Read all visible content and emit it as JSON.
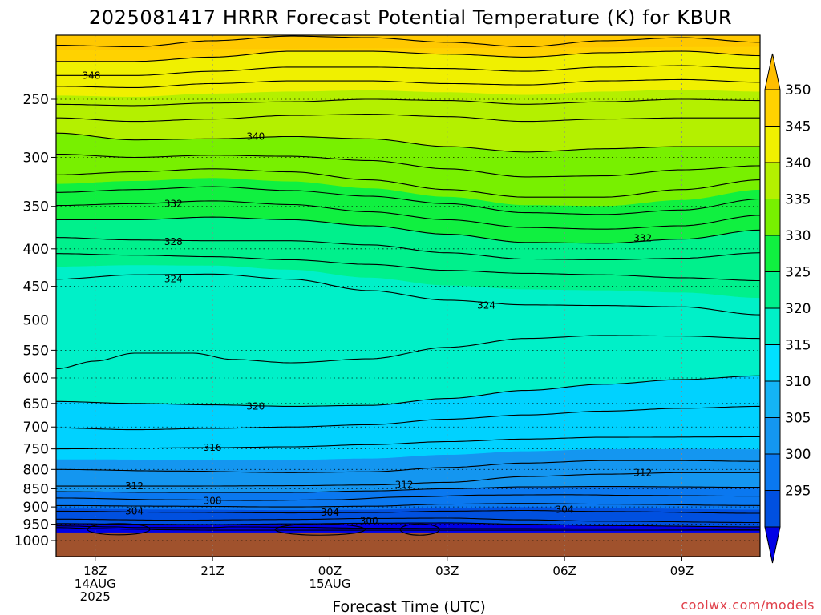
{
  "chart_data": {
    "type": "heatmap",
    "title": "2025081417 HRRR Forecast Potential Temperature (K) for KBUR",
    "xlabel": "Forecast Time (UTC)",
    "ylabel": "",
    "watermark": "coolwx.com/models",
    "x_ticks": [
      {
        "label": "18Z",
        "date": "14AUG",
        "year": "2025"
      },
      {
        "label": "21Z",
        "date": "",
        "year": ""
      },
      {
        "label": "00Z",
        "date": "15AUG",
        "year": ""
      },
      {
        "label": "03Z",
        "date": "",
        "year": ""
      },
      {
        "label": "06Z",
        "date": "",
        "year": ""
      },
      {
        "label": "09Z",
        "date": "",
        "year": ""
      }
    ],
    "y_axis": {
      "scale": "log-pressure",
      "units": "hPa",
      "range": [
        1000,
        200
      ],
      "ticks": [
        250,
        300,
        350,
        400,
        450,
        500,
        550,
        600,
        650,
        700,
        750,
        800,
        850,
        900,
        950,
        1000
      ]
    },
    "x_range_hours": [
      -1,
      17
    ],
    "surface_pressure_hpa": 975,
    "colorbar": {
      "levels": [
        295,
        300,
        305,
        310,
        315,
        320,
        325,
        330,
        335,
        340,
        345,
        350
      ],
      "colors": [
        "#0000e6",
        "#0050e0",
        "#0a78f0",
        "#1496f0",
        "#14b4f5",
        "#00e1ff",
        "#00f0c8",
        "#00f08c",
        "#10f040",
        "#78f000",
        "#b4f000",
        "#f0f000",
        "#ffd200",
        "#ffbe00"
      ]
    },
    "ground_color": "#a0522d",
    "contour_labels": [
      {
        "value": "348",
        "hour": -0.1,
        "p": 232
      },
      {
        "value": "340",
        "hour": 4.1,
        "p": 281
      },
      {
        "value": "332",
        "hour": 2.0,
        "p": 347
      },
      {
        "value": "328",
        "hour": 2.0,
        "p": 391
      },
      {
        "value": "324",
        "hour": 2.0,
        "p": 440
      },
      {
        "value": "324",
        "hour": 10.0,
        "p": 478
      },
      {
        "value": "332",
        "hour": 14.0,
        "p": 387
      },
      {
        "value": "320",
        "hour": 4.1,
        "p": 656
      },
      {
        "value": "316",
        "hour": 3.0,
        "p": 747
      },
      {
        "value": "312",
        "hour": 1.0,
        "p": 843
      },
      {
        "value": "312",
        "hour": 7.9,
        "p": 840
      },
      {
        "value": "312",
        "hour": 14.0,
        "p": 808
      },
      {
        "value": "308",
        "hour": 3.0,
        "p": 883
      },
      {
        "value": "304",
        "hour": 1.0,
        "p": 912
      },
      {
        "value": "304",
        "hour": 6.0,
        "p": 916
      },
      {
        "value": "304",
        "hour": 12.0,
        "p": 908
      },
      {
        "value": "300",
        "hour": 7.0,
        "p": 940
      }
    ]
  }
}
